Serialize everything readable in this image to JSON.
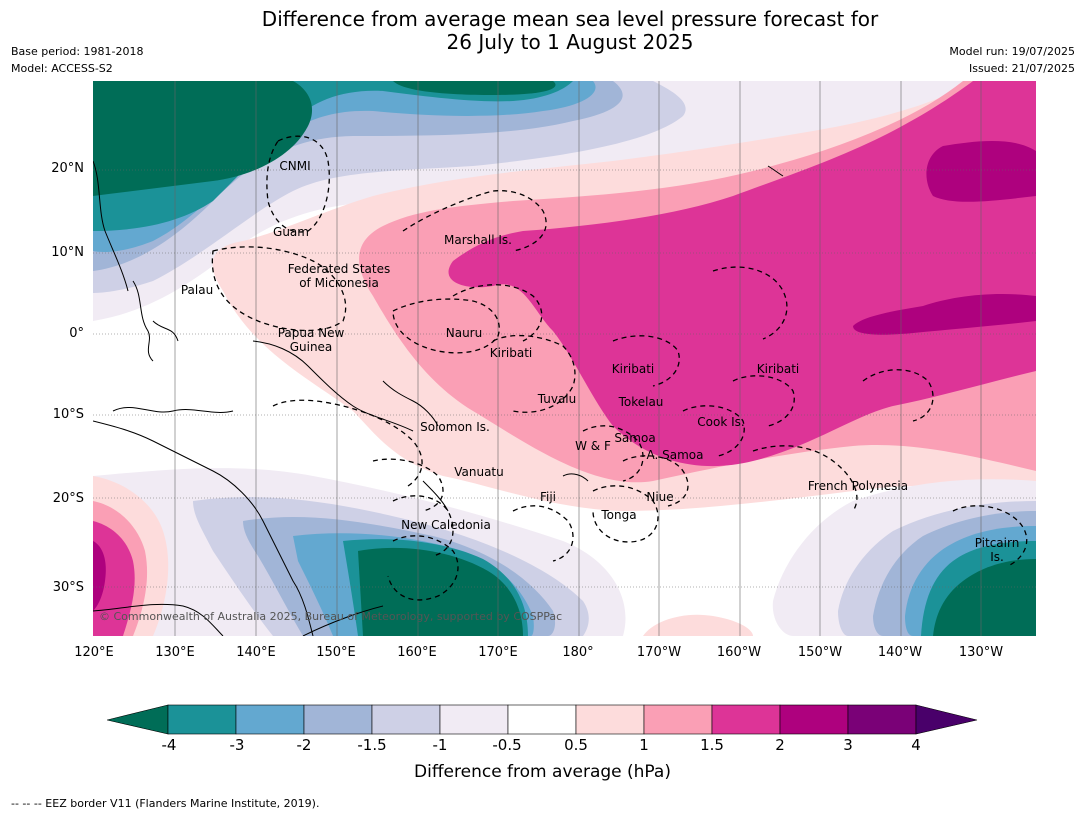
{
  "title_line1": "Difference from average mean sea level pressure forecast for",
  "title_line2": "26 July to 1 August 2025",
  "meta_left": {
    "base_period": "Base period: 1981-2018",
    "model": "Model: ACCESS-S2"
  },
  "meta_right": {
    "model_run": "Model run: 19/07/2025",
    "issued": "Issued: 21/07/2025"
  },
  "lat_labels": [
    "20°N",
    "10°N",
    "0°",
    "10°S",
    "20°S",
    "30°S"
  ],
  "lon_labels": [
    "120°E",
    "130°E",
    "140°E",
    "150°E",
    "160°E",
    "170°E",
    "180°",
    "170°W",
    "160°W",
    "150°W",
    "140°W",
    "130°W"
  ],
  "region_labels": {
    "cnmi": "CNMI",
    "guam": "Guam",
    "marshall": "Marshall Is.",
    "fsm1": "Federated States",
    "fsm2": "of Micronesia",
    "palau": "Palau",
    "png1": "Papua New",
    "png2": "Guinea",
    "nauru": "Nauru",
    "kiribati_w": "Kiribati",
    "kiribati_c": "Kiribati",
    "kiribati_e": "Kiribati",
    "tuvalu": "Tuvalu",
    "tokelau": "Tokelau",
    "solomon": "Solomon Is.",
    "samoa": "Samoa",
    "wf": "W & F",
    "asamoa": "A. Samoa",
    "cook": "Cook Is.",
    "vanuatu": "Vanuatu",
    "fiji": "Fiji",
    "niue": "Niue",
    "tonga": "Tonga",
    "frpoly": "French Polynesia",
    "newcal": "New Caledonia",
    "pitcairn1": "Pitcairn",
    "pitcairn2": "Is."
  },
  "copyright": "© Commonwealth of Australia 2025, Bureau of Meteorology, supported by COSPPac",
  "colorbar": {
    "title": "Difference from average (hPa)",
    "ticks": [
      "-4",
      "-3",
      "-2",
      "-1.5",
      "-1",
      "-0.5",
      "0.5",
      "1",
      "1.5",
      "2",
      "3",
      "4"
    ],
    "colors": [
      "#1b9298",
      "#63a8d0",
      "#a1b5d7",
      "#ced0e6",
      "#f1ebf4",
      "#ffffff",
      "#fddcdc",
      "#fa9fb5",
      "#dd3497",
      "#ae017e",
      "#7a0177"
    ],
    "under_color": "#006d57",
    "over_color": "#49006a"
  },
  "eez_note": "--  --  -- EEZ border V11 (Flanders Marine Institute, 2019)."
}
